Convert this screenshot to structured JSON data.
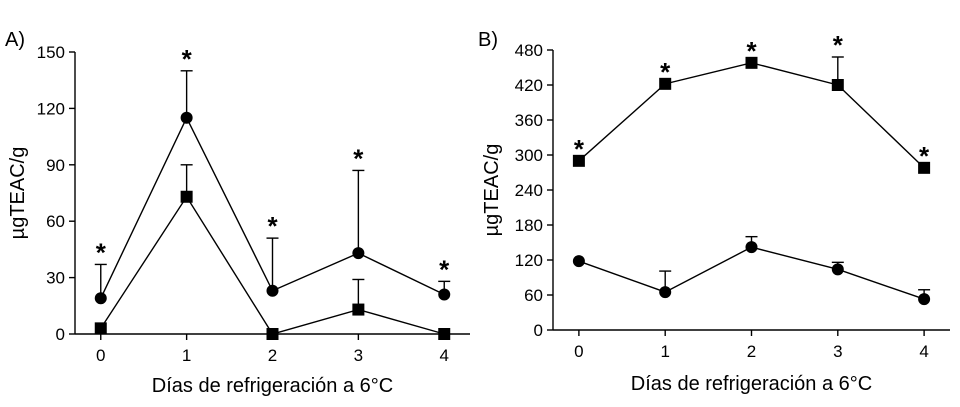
{
  "chart_data": [
    {
      "type": "line",
      "panel_label": "A)",
      "title": "",
      "xlabel": "Días de refrigeración a 6°C",
      "ylabel": "µgTEAC/g",
      "xlim": [
        -0.3,
        4.3
      ],
      "ylim": [
        0,
        150
      ],
      "xticks": [
        0,
        1,
        2,
        3,
        4
      ],
      "yticks": [
        0,
        30,
        60,
        90,
        120,
        150
      ],
      "grid": false,
      "legend": "none",
      "series": [
        {
          "marker": "circle",
          "x": [
            0,
            1,
            2,
            3,
            4
          ],
          "y": [
            19,
            115,
            23,
            43,
            21
          ],
          "error_upper": [
            37,
            140,
            51,
            87,
            28
          ]
        },
        {
          "marker": "square",
          "x": [
            0,
            1,
            2,
            3,
            4
          ],
          "y": [
            3,
            73,
            0,
            13,
            0
          ],
          "error_upper": [
            null,
            90,
            null,
            29,
            null
          ]
        }
      ],
      "annotations": [
        {
          "x": 0,
          "y": 37,
          "text": "*"
        },
        {
          "x": 1,
          "y": 140,
          "text": "*"
        },
        {
          "x": 2,
          "y": 51,
          "text": "*"
        },
        {
          "x": 3,
          "y": 87,
          "text": "*"
        },
        {
          "x": 4,
          "y": 28,
          "text": "*"
        }
      ]
    },
    {
      "type": "line",
      "panel_label": "B)",
      "title": "",
      "xlabel": "Días de refrigeración a 6°C",
      "ylabel": "µgTEAC/g",
      "xlim": [
        -0.3,
        4.3
      ],
      "ylim": [
        0,
        480
      ],
      "xticks": [
        0,
        1,
        2,
        3,
        4
      ],
      "yticks": [
        0,
        60,
        120,
        180,
        240,
        300,
        360,
        420,
        480
      ],
      "grid": false,
      "legend": "none",
      "series": [
        {
          "marker": "square",
          "x": [
            0,
            1,
            2,
            3,
            4
          ],
          "y": [
            290,
            422,
            458,
            420,
            278
          ],
          "error_upper": [
            null,
            null,
            null,
            468,
            null
          ]
        },
        {
          "marker": "circle",
          "x": [
            0,
            1,
            2,
            3,
            4
          ],
          "y": [
            118,
            65,
            142,
            104,
            53
          ],
          "error_upper": [
            null,
            101,
            160,
            116,
            69
          ]
        }
      ],
      "annotations": [
        {
          "x": 0,
          "y": 290,
          "text": "*"
        },
        {
          "x": 1,
          "y": 422,
          "text": "*"
        },
        {
          "x": 2,
          "y": 458,
          "text": "*"
        },
        {
          "x": 3,
          "y": 468,
          "text": "*"
        },
        {
          "x": 4,
          "y": 278,
          "text": "*"
        }
      ]
    }
  ]
}
